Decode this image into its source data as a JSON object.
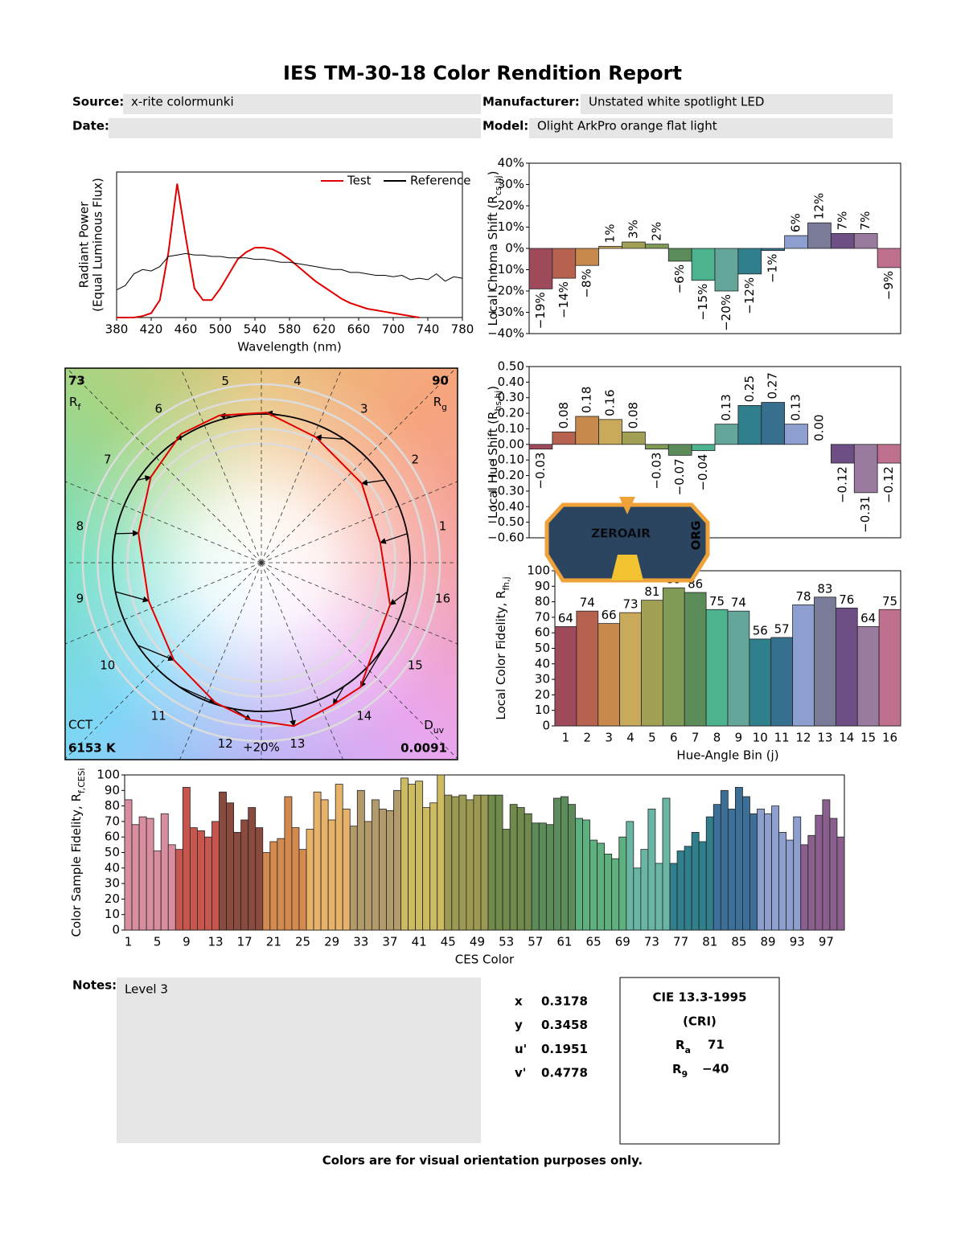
{
  "title": "IES TM-30-18 Color Rendition Report",
  "header": {
    "source_label": "Source:",
    "source": "x-rite colormunki",
    "manufacturer_label": "Manufacturer:",
    "manufacturer": "Unstated white spotlight LED",
    "date_label": "Date:",
    "model_label": "Model:",
    "model": "Olight ArkPro orange flat light"
  },
  "chart_data": [
    {
      "type": "line",
      "ylabel": "Radiant Power",
      "ylabel_note": "(Equal Luminous Flux)",
      "xlabel": "Wavelength (nm)",
      "x": [
        380,
        390,
        400,
        410,
        420,
        430,
        440,
        450,
        460,
        470,
        480,
        490,
        500,
        510,
        520,
        530,
        540,
        550,
        560,
        570,
        580,
        590,
        600,
        610,
        620,
        630,
        640,
        650,
        660,
        670,
        680,
        690,
        700,
        710,
        720,
        730,
        740,
        750,
        760,
        770,
        780
      ],
      "xlim": [
        380,
        780
      ],
      "xticks": [
        380,
        420,
        460,
        500,
        540,
        580,
        620,
        660,
        700,
        740,
        780
      ],
      "ylim": [
        0,
        1
      ],
      "legend": "upper right",
      "series": [
        {
          "name": "Test",
          "color": "#e00000",
          "values": [
            0,
            0,
            0,
            0.01,
            0.03,
            0.12,
            0.45,
            0.92,
            0.55,
            0.2,
            0.12,
            0.12,
            0.2,
            0.3,
            0.4,
            0.45,
            0.48,
            0.48,
            0.47,
            0.44,
            0.4,
            0.35,
            0.3,
            0.25,
            0.21,
            0.17,
            0.13,
            0.1,
            0.08,
            0.06,
            0.05,
            0.04,
            0.03,
            0.02,
            0.01,
            0,
            null,
            null,
            null,
            null,
            null
          ]
        },
        {
          "name": "Reference",
          "color": "#000000",
          "values": [
            0.19,
            0.22,
            0.3,
            0.33,
            0.32,
            0.35,
            0.42,
            0.43,
            0.44,
            0.43,
            0.43,
            0.42,
            0.42,
            0.41,
            0.41,
            0.41,
            0.4,
            0.4,
            0.39,
            0.38,
            0.38,
            0.37,
            0.36,
            0.35,
            0.34,
            0.33,
            0.33,
            0.31,
            0.31,
            0.3,
            0.29,
            0.29,
            0.28,
            0.29,
            0.26,
            0.27,
            0.26,
            0.3,
            0.25,
            0.28,
            0.27
          ]
        }
      ]
    },
    {
      "type": "bar",
      "ylabel": [
        "Local Chroma Shift (R",
        "cs,hj",
        ")"
      ],
      "values": [
        -19,
        -14,
        -8,
        1,
        3,
        2,
        -6,
        -15,
        -20,
        -12,
        -1,
        6,
        12,
        7,
        7,
        -9
      ],
      "value_labels": [
        "−19%",
        "−14%",
        "−8%",
        "1%",
        "3%",
        "2%",
        "−6%",
        "−15%",
        "−20%",
        "−12%",
        "−1%",
        "6%",
        "12%",
        "7%",
        "7%",
        "−9%"
      ],
      "colors": [
        "#9e4a5a",
        "#b6624e",
        "#c88a4c",
        "#c9a95a",
        "#a2a055",
        "#7f9b56",
        "#5b8c5a",
        "#4db38f",
        "#64a69a",
        "#2f7f8c",
        "#36708e",
        "#8d9fcf",
        "#7a7a99",
        "#6d4f86",
        "#9a7a9f",
        "#c0708f"
      ],
      "ylim": [
        -40,
        40
      ],
      "yticks": [
        {
          "value": 40,
          "label": "40%"
        },
        {
          "value": 30,
          "label": "30%"
        },
        {
          "value": 20,
          "label": "20%"
        },
        {
          "value": 10,
          "label": "10%"
        },
        {
          "value": 0,
          "label": "0%"
        },
        {
          "value": -10,
          "label": "−10%"
        },
        {
          "value": -20,
          "label": "−20%"
        },
        {
          "value": -30,
          "label": "−30%"
        },
        {
          "value": -40,
          "label": "−40%"
        }
      ]
    },
    {
      "type": "bar",
      "ylabel": [
        "Local Hue Shift (R",
        "hs,hj",
        ")"
      ],
      "values": [
        -0.03,
        0.08,
        0.18,
        0.16,
        0.08,
        -0.03,
        -0.07,
        -0.04,
        0.13,
        0.25,
        0.27,
        0.13,
        0.0,
        -0.12,
        -0.31,
        -0.12
      ],
      "value_labels": [
        "−0.03",
        "0.08",
        "0.18",
        "0.16",
        "0.08",
        "−0.03",
        "−0.07",
        "−0.04",
        "0.13",
        "0.25",
        "0.27",
        "0.13",
        "0.00",
        "−0.12",
        "−0.31",
        "−0.12"
      ],
      "colors": [
        "#9e4a5a",
        "#b6624e",
        "#c88a4c",
        "#c9a95a",
        "#a2a055",
        "#7f9b56",
        "#5b8c5a",
        "#4db38f",
        "#64a69a",
        "#2f7f8c",
        "#36708e",
        "#8d9fcf",
        "#7a7a99",
        "#6d4f86",
        "#9a7a9f",
        "#c0708f"
      ],
      "ylim": [
        -0.6,
        0.5
      ],
      "yticks": [
        {
          "value": 0.5,
          "label": "0.50"
        },
        {
          "value": 0.4,
          "label": "0.40"
        },
        {
          "value": 0.3,
          "label": "0.30"
        },
        {
          "value": 0.2,
          "label": "0.20"
        },
        {
          "value": 0.1,
          "label": "0.10"
        },
        {
          "value": 0,
          "label": "0.00"
        },
        {
          "value": -0.1,
          "label": "−0.10"
        },
        {
          "value": -0.2,
          "label": "−0.20"
        },
        {
          "value": -0.3,
          "label": "−0.30"
        },
        {
          "value": -0.4,
          "label": "−0.40"
        },
        {
          "value": -0.5,
          "label": "−0.50"
        },
        {
          "value": -0.6,
          "label": "−0.60"
        }
      ]
    },
    {
      "type": "bar",
      "ylabel": [
        "Local Color Fidelity, R",
        "fh,j"
      ],
      "xlabel": "Hue-Angle Bin (j)",
      "categories": [
        "1",
        "2",
        "3",
        "4",
        "5",
        "6",
        "7",
        "8",
        "9",
        "10",
        "11",
        "12",
        "13",
        "14",
        "15",
        "16"
      ],
      "values": [
        64,
        74,
        66,
        73,
        81,
        89,
        86,
        75,
        74,
        56,
        57,
        78,
        83,
        76,
        64,
        75
      ],
      "show_values": true,
      "colors": [
        "#9e4a5a",
        "#b6624e",
        "#c88a4c",
        "#c9a95a",
        "#a2a055",
        "#7f9b56",
        "#5b8c5a",
        "#4db38f",
        "#64a69a",
        "#2f7f8c",
        "#36708e",
        "#8d9fcf",
        "#7a7a99",
        "#6d4f86",
        "#9a7a9f",
        "#c0708f"
      ],
      "ylim": [
        0,
        100
      ],
      "yticks": [
        0,
        10,
        20,
        30,
        40,
        50,
        60,
        70,
        80,
        90,
        100
      ]
    },
    {
      "type": "vector",
      "rf": 73,
      "rf_label": [
        "R",
        "f"
      ],
      "rg": 90,
      "rg_label": [
        "R",
        "g"
      ],
      "cct_label": "CCT",
      "cct": {
        "value": 6153,
        "label": "6153 K"
      },
      "duv_label": [
        "D",
        "uv"
      ],
      "duv": 0.0091,
      "bin_labels": [
        "1",
        "2",
        "3",
        "4",
        "5",
        "6",
        "7",
        "8",
        "9",
        "10",
        "11",
        "12",
        "13",
        "14",
        "15",
        "16"
      ],
      "scale_label": "+20%"
    },
    {
      "type": "bar",
      "ylabel": [
        "Color Sample Fidelity, R",
        "f,CESi"
      ],
      "xlabel": "CES Color",
      "categories": [
        "1",
        null,
        null,
        null,
        "5",
        null,
        null,
        null,
        "9",
        null,
        null,
        null,
        "13",
        null,
        null,
        null,
        "17",
        null,
        null,
        null,
        "21",
        null,
        null,
        null,
        "25",
        null,
        null,
        null,
        "29",
        null,
        null,
        null,
        "33",
        null,
        null,
        null,
        "37",
        null,
        null,
        null,
        "41",
        null,
        null,
        null,
        "45",
        null,
        null,
        null,
        "49",
        null,
        null,
        null,
        "53",
        null,
        null,
        null,
        "57",
        null,
        null,
        null,
        "61",
        null,
        null,
        null,
        "65",
        null,
        null,
        null,
        "69",
        null,
        null,
        null,
        "73",
        null,
        null,
        null,
        "77",
        null,
        null,
        null,
        "81",
        null,
        null,
        null,
        "85",
        null,
        null,
        null,
        "89",
        null,
        null,
        null,
        "93",
        null,
        null,
        null,
        "97",
        null,
        null
      ],
      "values": [
        84,
        68,
        73,
        72,
        51,
        75,
        55,
        52,
        92,
        66,
        64,
        60,
        70,
        89,
        82,
        63,
        71,
        79,
        66,
        50,
        57,
        59,
        86,
        66,
        52,
        65,
        89,
        84,
        71,
        94,
        78,
        67,
        90,
        70,
        84,
        78,
        77,
        90,
        98,
        94,
        96,
        79,
        82,
        100,
        87,
        86,
        87,
        84,
        87,
        87,
        87,
        87,
        65,
        81,
        79,
        75,
        69,
        69,
        68,
        85,
        86,
        81,
        72,
        71,
        58,
        56,
        49,
        46,
        60,
        70,
        40,
        52,
        78,
        43,
        85,
        43,
        51,
        54,
        63,
        57,
        73,
        81,
        90,
        78,
        92,
        86,
        75,
        78,
        75,
        80,
        63,
        58,
        73,
        55,
        61,
        74,
        84,
        72,
        60
      ],
      "colors": [
        "#d98ea0",
        "#c6564e",
        "#8a4b3e",
        "#d48a4e",
        "#e7b36a",
        "#b39a6a",
        "#cdbb62",
        "#9c9a52",
        "#6f8a4a",
        "#5b8c5a",
        "#5fb07f",
        "#69b6a4",
        "#2f7f8c",
        "#3c6f97",
        "#8d9fcf",
        "#8a5f8e"
      ],
      "ylim": [
        0,
        100
      ],
      "yticks": [
        0,
        10,
        20,
        30,
        40,
        50,
        60,
        70,
        80,
        90,
        100
      ]
    }
  ],
  "chromaticity": [
    {
      "label": "x",
      "value": 0.3178
    },
    {
      "label": "y",
      "value": 0.3458
    },
    {
      "label": "u'",
      "value": 0.1951
    },
    {
      "label": "v'",
      "value": 0.4778
    }
  ],
  "cri": {
    "title": "CIE 13.3-1995",
    "subtitle": "(CRI)",
    "ra_label": [
      "R",
      "a"
    ],
    "ra": 71,
    "r9_label": [
      "R",
      "9"
    ],
    "r9": {
      "value": -40,
      "label": "−40"
    }
  },
  "notes": {
    "label": "Notes:",
    "text": "Level 3"
  },
  "footer": "Colors are for visual orientation purposes only.",
  "watermark": {
    "text": "ZEROAIR",
    "sub": "ORG"
  }
}
